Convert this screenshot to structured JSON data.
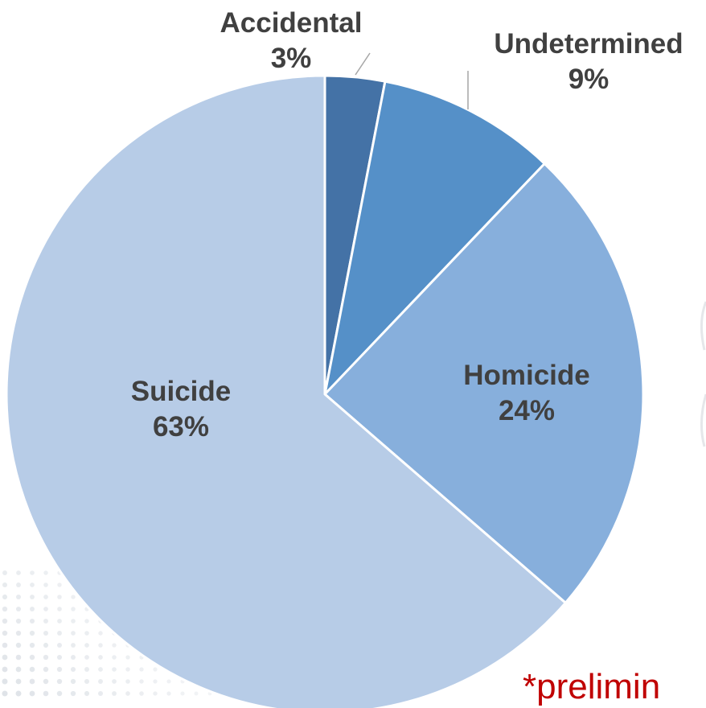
{
  "chart_data": {
    "type": "pie",
    "slices": [
      {
        "name": "Accidental",
        "value": 3,
        "value_label": "3%",
        "color": "#4472a6"
      },
      {
        "name": "Undetermined",
        "value": 9,
        "value_label": "9%",
        "color": "#5590c8"
      },
      {
        "name": "Homicide",
        "value": 24,
        "value_label": "24%",
        "color": "#87afdc"
      },
      {
        "name": "Suicide",
        "value": 63,
        "value_label": "63%",
        "color": "#b7cce7"
      }
    ],
    "start_angle": "12 o'clock",
    "direction": "clockwise",
    "slice_border_color": "#ffffff",
    "label_color": "#404040",
    "note": "*prelimin",
    "note_color": "#c00000"
  }
}
